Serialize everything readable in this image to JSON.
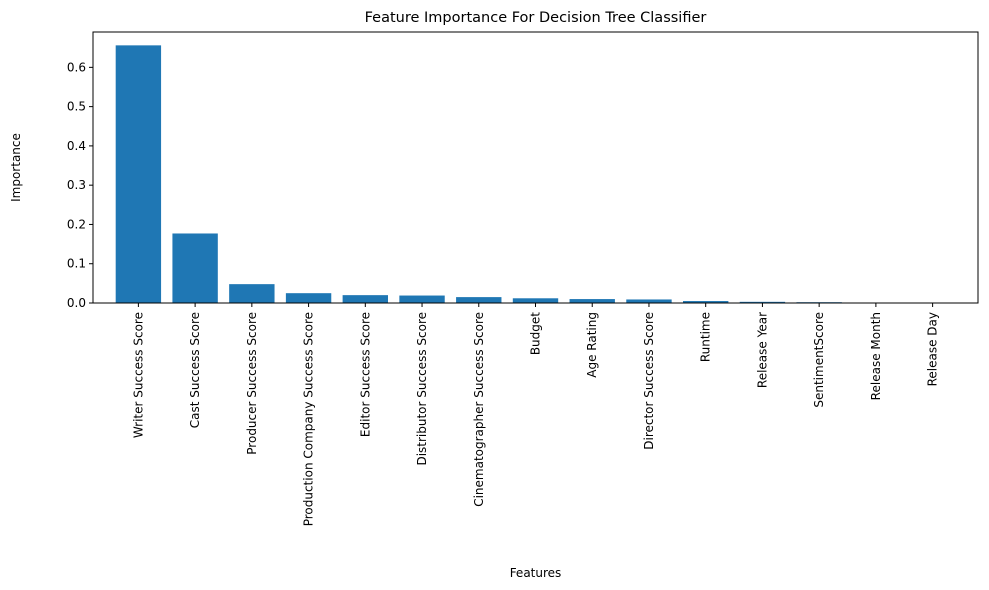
{
  "chart_data": {
    "type": "bar",
    "title": "Feature Importance For Decision Tree Classifier",
    "xlabel": "Features",
    "ylabel": "Importance",
    "categories": [
      "Writer Success Score",
      "Cast Success Score",
      "Producer Success Score",
      "Production Company Success Score",
      "Editor Success Score",
      "Distributor Success Score",
      "Cinematographer Success Score",
      "Budget",
      "Age Rating",
      "Director Success Score",
      "Runtime",
      "Release Year",
      "SentimentScore",
      "Release Month",
      "Release Day"
    ],
    "values": [
      0.656,
      0.177,
      0.048,
      0.025,
      0.02,
      0.019,
      0.015,
      0.012,
      0.01,
      0.009,
      0.005,
      0.003,
      0.002,
      0.0,
      0.0
    ],
    "ylim": [
      0,
      0.69
    ],
    "yticks": [
      0.0,
      0.1,
      0.2,
      0.3,
      0.4,
      0.5,
      0.6
    ],
    "ytick_labels": [
      "0.0",
      "0.1",
      "0.2",
      "0.3",
      "0.4",
      "0.5",
      "0.6"
    ],
    "bar_color": "#1f77b4",
    "grid": false,
    "legend": "none"
  }
}
